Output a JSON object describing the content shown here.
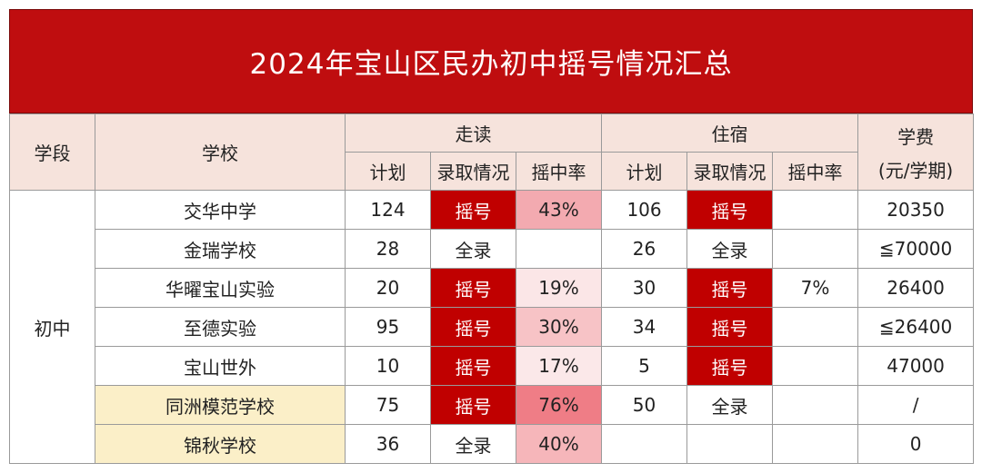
{
  "title": "2024年宝山区民办初中摇号情况汇总",
  "headers": {
    "stage": "学段",
    "school": "学校",
    "day": "走读",
    "boarding": "住宿",
    "fee_line1": "学费",
    "fee_line2": "(元/学期)",
    "plan": "计划",
    "admission": "录取情况",
    "rate": "摇中率"
  },
  "stage_value": "初中",
  "rows": [
    {
      "school": "交华中学",
      "day_plan": "124",
      "day_status": "摇号",
      "day_rate": "43%",
      "board_plan": "106",
      "board_status": "摇号",
      "board_rate": "",
      "fee": "20350"
    },
    {
      "school": "金瑞学校",
      "day_plan": "28",
      "day_status": "全录",
      "day_rate": "",
      "board_plan": "26",
      "board_status": "全录",
      "board_rate": "",
      "fee": "≦70000"
    },
    {
      "school": "华曜宝山实验",
      "day_plan": "20",
      "day_status": "摇号",
      "day_rate": "19%",
      "board_plan": "30",
      "board_status": "摇号",
      "board_rate": "7%",
      "fee": "26400"
    },
    {
      "school": "至德实验",
      "day_plan": "95",
      "day_status": "摇号",
      "day_rate": "30%",
      "board_plan": "34",
      "board_status": "摇号",
      "board_rate": "",
      "fee": "≦26400"
    },
    {
      "school": "宝山世外",
      "day_plan": "10",
      "day_status": "摇号",
      "day_rate": "17%",
      "board_plan": "5",
      "board_status": "摇号",
      "board_rate": "",
      "fee": "47000"
    },
    {
      "school": "同洲模范学校",
      "day_plan": "75",
      "day_status": "摇号",
      "day_rate": "76%",
      "board_plan": "50",
      "board_status": "全录",
      "board_rate": "",
      "fee": "/"
    },
    {
      "school": "锦秋学校",
      "day_plan": "36",
      "day_status": "全录",
      "day_rate": "40%",
      "board_plan": "",
      "board_status": "",
      "board_rate": "",
      "fee": "0"
    }
  ],
  "colors": {
    "title_bg": "#bf0d0f",
    "header_bg": "#f6e3dc",
    "lottery_bg": "#c00000",
    "highlight_school_bg": "#fbefc8"
  }
}
